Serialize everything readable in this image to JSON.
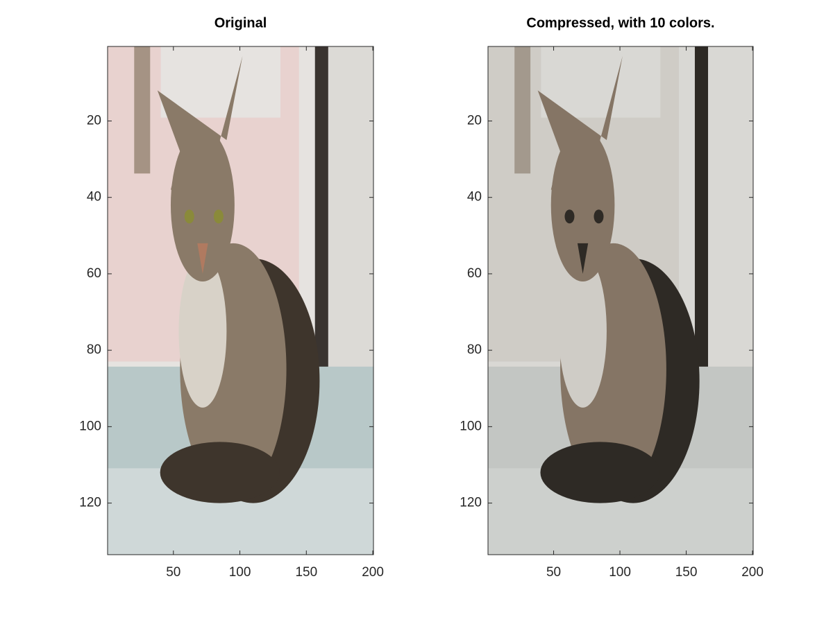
{
  "chart_data": [
    {
      "type": "image",
      "title": "Original",
      "xlim": [
        0.5,
        200.5
      ],
      "ylim": [
        0.5,
        133.5
      ],
      "y_reversed": true,
      "xticks": [
        50,
        100,
        150,
        200
      ],
      "yticks": [
        20,
        40,
        60,
        80,
        100,
        120
      ]
    },
    {
      "type": "image",
      "title": "Compressed, with 10 colors.",
      "xlim": [
        0.5,
        200.5
      ],
      "ylim": [
        0.5,
        133.5
      ],
      "y_reversed": true,
      "xticks": [
        50,
        100,
        150,
        200
      ],
      "yticks": [
        20,
        40,
        60,
        80,
        100,
        120
      ]
    }
  ]
}
